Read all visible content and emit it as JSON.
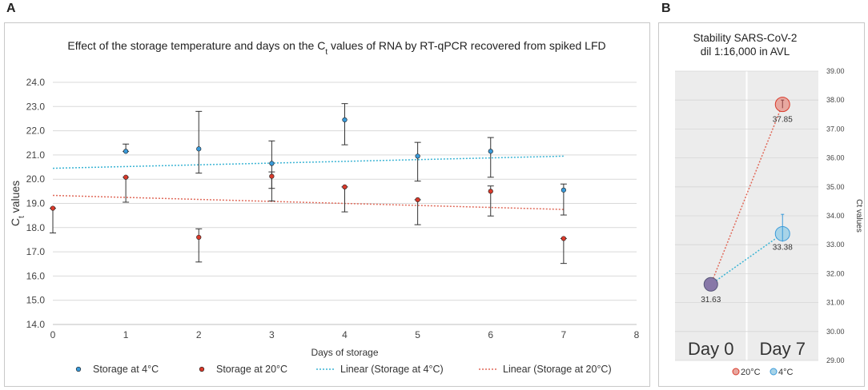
{
  "panel_labels": {
    "a": "A",
    "b": "B"
  },
  "colors": {
    "blue": "#3a9ad9",
    "red": "#d93a2b",
    "trend_blue": "#3ab4d4",
    "trend_red": "#e06a5a",
    "bubble_red_fill": "#e8a8a0",
    "bubble_blue_fill": "#a8d4e8",
    "bubble_mix_fill": "#8878a8",
    "panel_bg": "#ececec",
    "grid": "#d9d9d9",
    "axis_text": "#444444"
  },
  "chart_data": [
    {
      "id": "A",
      "type": "scatter",
      "title_parts": [
        "Effect of the storage temperature and days on the C",
        "t",
        " values of RNA by RT-qPCR recovered from spiked LFD"
      ],
      "xlabel": "Days of storage",
      "ylabel_parts": [
        "C",
        "t",
        " values"
      ],
      "xlim": [
        0,
        8
      ],
      "ylim": [
        14.0,
        24.0
      ],
      "xticks": [
        "0",
        "1",
        "2",
        "3",
        "4",
        "5",
        "6",
        "7",
        "8"
      ],
      "yticks": [
        "14.0",
        "15.0",
        "16.0",
        "17.0",
        "18.0",
        "19.0",
        "20.0",
        "21.0",
        "22.0",
        "23.0",
        "24.0"
      ],
      "grid": "horizontal",
      "legend_position": "bottom",
      "series": [
        {
          "name": "Storage at 4°C",
          "color_key": "blue",
          "points": [
            {
              "x": 1,
              "y": 21.15,
              "err_low": 21.15,
              "err_high": 21.45
            },
            {
              "x": 2,
              "y": 21.25,
              "err_low": 20.25,
              "err_high": 22.8
            },
            {
              "x": 3,
              "y": 20.65,
              "err_low": 19.62,
              "err_high": 21.58
            },
            {
              "x": 4,
              "y": 22.45,
              "err_low": 21.42,
              "err_high": 23.12
            },
            {
              "x": 5,
              "y": 20.95,
              "err_low": 19.92,
              "err_high": 21.52
            },
            {
              "x": 6,
              "y": 21.15,
              "err_low": 20.08,
              "err_high": 21.72
            },
            {
              "x": 7,
              "y": 19.55,
              "err_low": 18.52,
              "err_high": 19.8
            }
          ]
        },
        {
          "name": "Storage at 20°C",
          "color_key": "red",
          "points": [
            {
              "x": 0,
              "y": 18.8,
              "err_low": 17.78,
              "err_high": 18.8
            },
            {
              "x": 1,
              "y": 20.08,
              "err_low": 19.05,
              "err_high": 20.08
            },
            {
              "x": 2,
              "y": 17.6,
              "err_low": 16.58,
              "err_high": 17.95
            },
            {
              "x": 3,
              "y": 20.12,
              "err_low": 19.1,
              "err_high": 20.3
            },
            {
              "x": 4,
              "y": 19.68,
              "err_low": 18.65,
              "err_high": 19.68
            },
            {
              "x": 5,
              "y": 19.15,
              "err_low": 18.12,
              "err_high": 19.15
            },
            {
              "x": 6,
              "y": 19.5,
              "err_low": 18.48,
              "err_high": 19.72
            },
            {
              "x": 7,
              "y": 17.55,
              "err_low": 16.52,
              "err_high": 17.55
            }
          ]
        }
      ],
      "trendlines": [
        {
          "name": "Linear (Storage at 4°C)",
          "color_key": "trend_blue",
          "x": [
            0,
            7
          ],
          "y": [
            20.45,
            20.95
          ]
        },
        {
          "name": "Linear (Storage at 20°C)",
          "color_key": "trend_red",
          "x": [
            0,
            7
          ],
          "y": [
            19.33,
            18.75
          ]
        }
      ]
    },
    {
      "id": "B",
      "type": "scatter",
      "title_lines": [
        "Stability SARS-CoV-2",
        "dil 1:16,000 in AVL"
      ],
      "categories": [
        "Day 0",
        "Day 7"
      ],
      "ylabel": "Ct values",
      "ylim": [
        29.0,
        39.0
      ],
      "yticks": [
        "29.00",
        "30.00",
        "31.00",
        "32.00",
        "33.00",
        "34.00",
        "35.00",
        "36.00",
        "37.00",
        "38.00",
        "39.00"
      ],
      "legend_position": "bottom",
      "series": [
        {
          "name": "20°C",
          "color_key": "red",
          "values": [
            31.63,
            37.85
          ],
          "err": [
            [
              31.63,
              31.63
            ],
            [
              37.72,
              38.0
            ]
          ]
        },
        {
          "name": "4°C",
          "color_key": "blue",
          "values": [
            31.63,
            33.38
          ],
          "err": [
            [
              31.63,
              31.63
            ],
            [
              33.38,
              34.05
            ]
          ]
        }
      ],
      "data_labels": [
        "31.63",
        "37.85",
        "33.38"
      ]
    }
  ]
}
